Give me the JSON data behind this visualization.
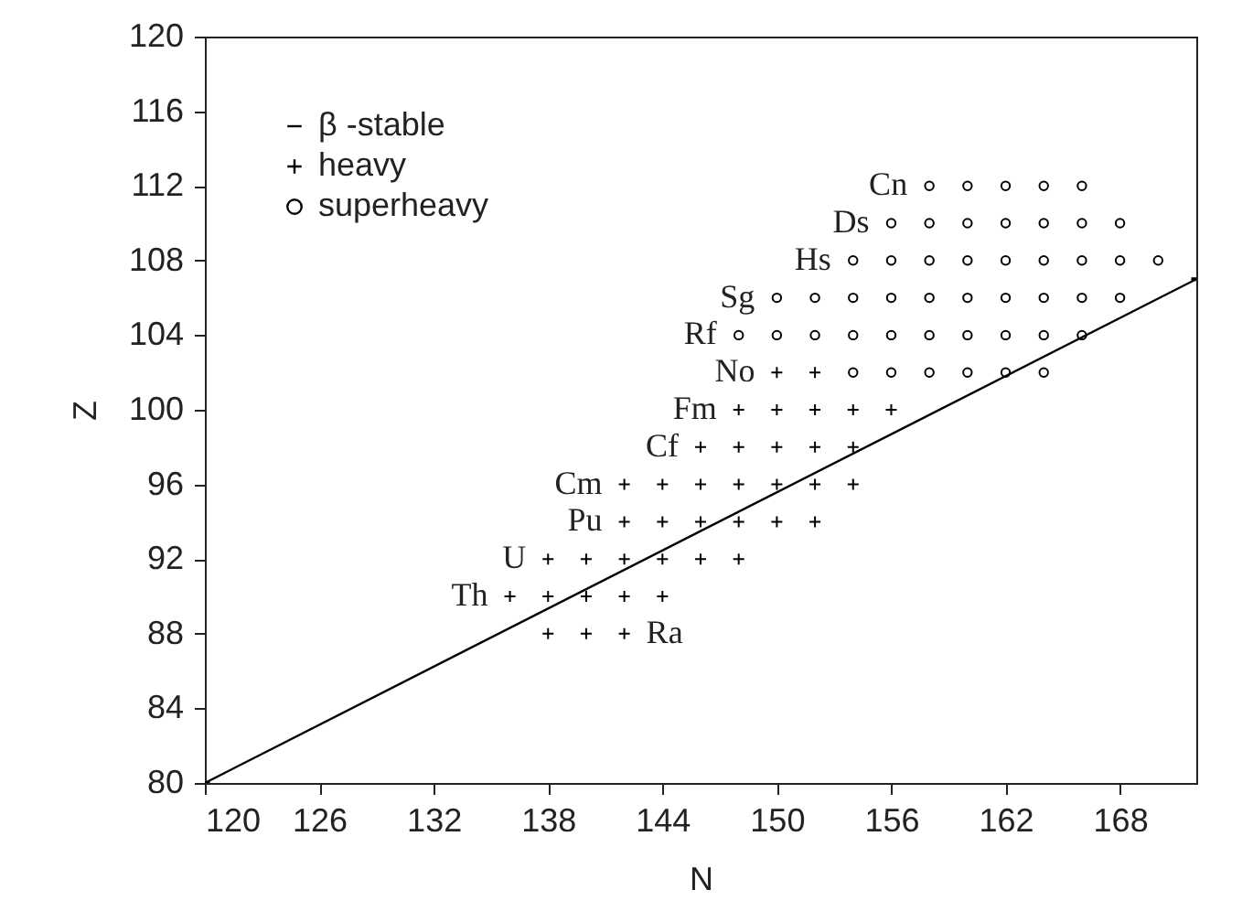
{
  "chart_data": {
    "type": "scatter",
    "xlabel": "N",
    "ylabel": "Z",
    "xlim": [
      120,
      172
    ],
    "ylim": [
      80,
      120
    ],
    "xticks": [
      120,
      126,
      132,
      138,
      144,
      150,
      156,
      162,
      168
    ],
    "yticks": [
      80,
      84,
      88,
      92,
      96,
      100,
      104,
      108,
      112,
      116,
      120
    ],
    "grid": false,
    "legend": "top left",
    "series": [
      {
        "name": "β -stable",
        "type": "line",
        "color": "#000000",
        "line_style": "solid",
        "x": [
          120,
          172
        ],
        "values": [
          80,
          107
        ]
      },
      {
        "name": "heavy",
        "color": "#000000",
        "marker": "cross",
        "x": [
          138,
          140,
          142,
          136,
          138,
          140,
          142,
          144,
          138,
          140,
          142,
          144,
          146,
          148,
          142,
          144,
          146,
          148,
          150,
          152,
          142,
          144,
          146,
          148,
          150,
          152,
          154,
          146,
          148,
          150,
          152,
          154,
          148,
          150,
          152,
          154,
          156,
          150,
          152
        ],
        "values": [
          88,
          88,
          88,
          90,
          90,
          90,
          90,
          90,
          92,
          92,
          92,
          92,
          92,
          92,
          94,
          94,
          94,
          94,
          94,
          94,
          96,
          96,
          96,
          96,
          96,
          96,
          96,
          98,
          98,
          98,
          98,
          98,
          100,
          100,
          100,
          100,
          100,
          102,
          102
        ]
      },
      {
        "name": "superheavy",
        "color": "#000000",
        "marker": "circle",
        "x": [
          154,
          156,
          158,
          160,
          162,
          164,
          148,
          150,
          152,
          154,
          156,
          158,
          160,
          162,
          164,
          166,
          150,
          152,
          154,
          156,
          158,
          160,
          162,
          164,
          166,
          168,
          154,
          156,
          158,
          160,
          162,
          164,
          166,
          168,
          170,
          156,
          158,
          160,
          162,
          164,
          166,
          168,
          158,
          160,
          162,
          164,
          166
        ],
        "values": [
          102,
          102,
          102,
          102,
          102,
          102,
          104,
          104,
          104,
          104,
          104,
          104,
          104,
          104,
          104,
          104,
          106,
          106,
          106,
          106,
          106,
          106,
          106,
          106,
          106,
          106,
          108,
          108,
          108,
          108,
          108,
          108,
          108,
          108,
          108,
          110,
          110,
          110,
          110,
          110,
          110,
          110,
          112,
          112,
          112,
          112,
          112
        ]
      }
    ],
    "annotations": [
      {
        "text": "Cn",
        "x": 158,
        "y": 112
      },
      {
        "text": "Ds",
        "x": 156,
        "y": 110
      },
      {
        "text": "Hs",
        "x": 154,
        "y": 108
      },
      {
        "text": "Sg",
        "x": 150,
        "y": 106
      },
      {
        "text": "Rf",
        "x": 148,
        "y": 104
      },
      {
        "text": "No",
        "x": 150,
        "y": 102
      },
      {
        "text": "Fm",
        "x": 148,
        "y": 100
      },
      {
        "text": "Cf",
        "x": 146,
        "y": 98
      },
      {
        "text": "Cm",
        "x": 142,
        "y": 96
      },
      {
        "text": "Pu",
        "x": 142,
        "y": 94
      },
      {
        "text": "U",
        "x": 138,
        "y": 92
      },
      {
        "text": "Th",
        "x": 136,
        "y": 90
      },
      {
        "text": "Ra",
        "x": 142,
        "y": 88
      }
    ]
  }
}
